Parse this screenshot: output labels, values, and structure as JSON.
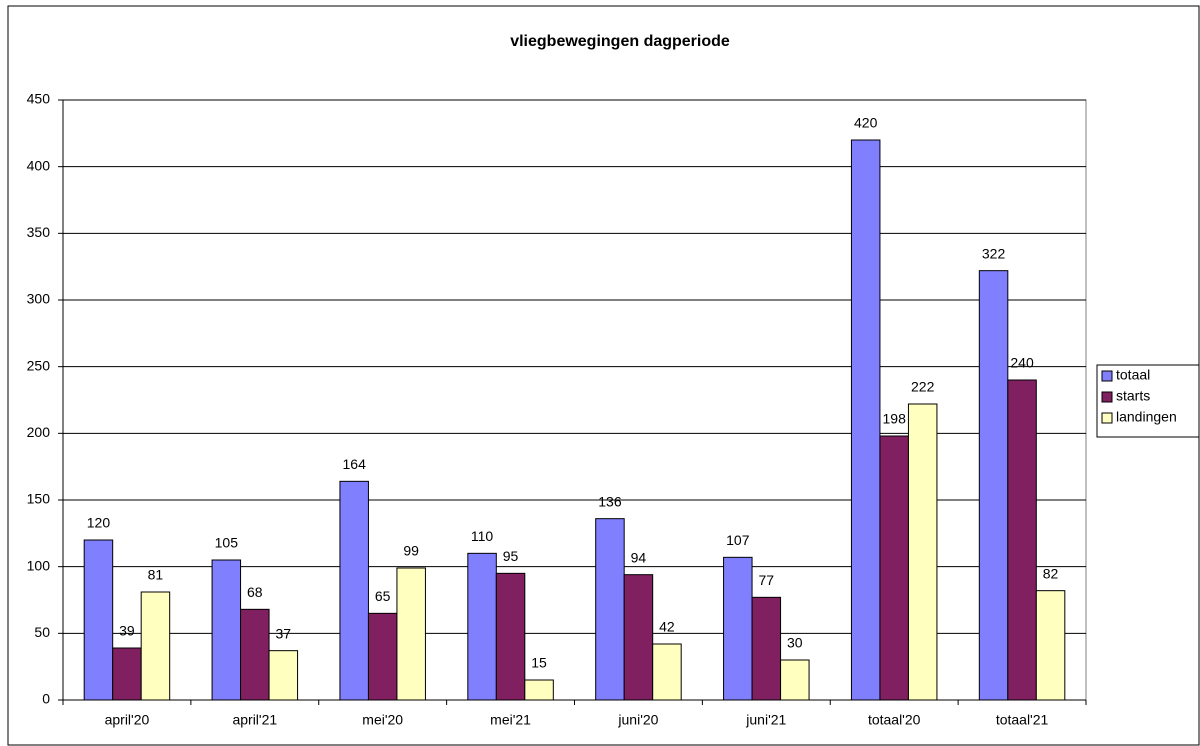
{
  "chart_data": {
    "type": "bar",
    "title": "vliegbewegingen dagperiode",
    "categories": [
      "april'20",
      "april'21",
      "mei'20",
      "mei'21",
      "juni'20",
      "juni'21",
      "totaal'20",
      "totaal'21"
    ],
    "series": [
      {
        "name": "totaal",
        "color": "#8080ff",
        "values": [
          120,
          105,
          164,
          110,
          136,
          107,
          420,
          322
        ]
      },
      {
        "name": "starts",
        "color": "#802060",
        "values": [
          39,
          68,
          65,
          95,
          94,
          77,
          198,
          240
        ]
      },
      {
        "name": "landingen",
        "color": "#ffffc0",
        "values": [
          81,
          37,
          99,
          15,
          42,
          30,
          222,
          82
        ]
      }
    ],
    "ylim": [
      0,
      450
    ],
    "yticks": [
      0,
      50,
      100,
      150,
      200,
      250,
      300,
      350,
      400,
      450
    ],
    "grid": true,
    "legend": "right"
  }
}
